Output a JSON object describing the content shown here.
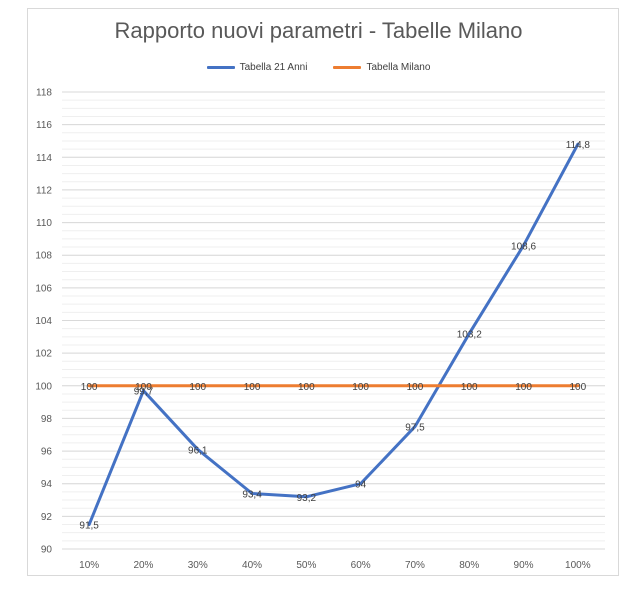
{
  "chart_data": {
    "type": "line",
    "title": "Rapporto nuovi parametri - Tabelle Milano",
    "xlabel": "",
    "ylabel": "",
    "categories": [
      "10%",
      "20%",
      "30%",
      "40%",
      "50%",
      "60%",
      "70%",
      "80%",
      "90%",
      "100%"
    ],
    "ylim": [
      90,
      118
    ],
    "yticks": [
      90,
      92,
      94,
      96,
      98,
      100,
      102,
      104,
      106,
      108,
      110,
      112,
      114,
      116,
      118
    ],
    "ytick_labels": [
      "90",
      "92",
      "94",
      "96",
      "98",
      "100",
      "102",
      "104",
      "106",
      "108",
      "110",
      "112",
      "114",
      "116",
      "118"
    ],
    "grid": true,
    "legend_position": "top",
    "series": [
      {
        "name": "Tabella 21 Anni",
        "color": "#4472c4",
        "values": [
          91.5,
          99.7,
          96.1,
          93.4,
          93.2,
          94,
          97.5,
          103.2,
          108.6,
          114.8
        ],
        "labels": [
          "91,5",
          "99,7",
          "96,1",
          "93,4",
          "93,2",
          "94",
          "97,5",
          "103,2",
          "108,6",
          "114,8"
        ]
      },
      {
        "name": "Tabella Milano",
        "color": "#ed7d31",
        "values": [
          100,
          100,
          100,
          100,
          100,
          100,
          100,
          100,
          100,
          100
        ],
        "labels": [
          "100",
          "100",
          "100",
          "100",
          "100",
          "100",
          "100",
          "100",
          "100",
          "100"
        ]
      }
    ]
  }
}
